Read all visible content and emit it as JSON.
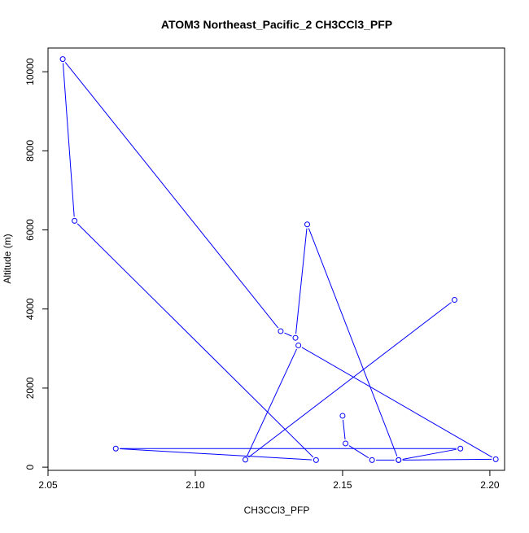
{
  "chart_data": {
    "type": "line",
    "title": "ATOM3 Northeast_Pacific_2 CH3CCl3_PFP",
    "xlabel": "CH3CCl3_PFP",
    "ylabel": "Altitude (m)",
    "xlim": [
      2.05,
      2.205
    ],
    "ylim": [
      -80,
      10600
    ],
    "x_ticks": [
      2.05,
      2.1,
      2.15,
      2.2
    ],
    "x_tick_labels": [
      "2.05",
      "2.10",
      "2.15",
      "2.20"
    ],
    "y_ticks": [
      0,
      2000,
      4000,
      6000,
      8000,
      10000
    ],
    "y_tick_labels": [
      "0",
      "2000",
      "4000",
      "6000",
      "8000",
      "10000"
    ],
    "grid": false,
    "series_color": "#0000ff",
    "series": [
      {
        "x": [
          2.15,
          2.151,
          2.16,
          2.169,
          2.138,
          2.134,
          2.129,
          2.055,
          2.059,
          2.141,
          2.073,
          2.19,
          2.169,
          2.202,
          2.135,
          2.117,
          2.188
        ],
        "y": [
          1300,
          600,
          180,
          180,
          6140,
          3270,
          3440,
          10320,
          6230,
          180,
          470,
          470,
          180,
          200,
          3080,
          190,
          4230
        ]
      }
    ]
  }
}
